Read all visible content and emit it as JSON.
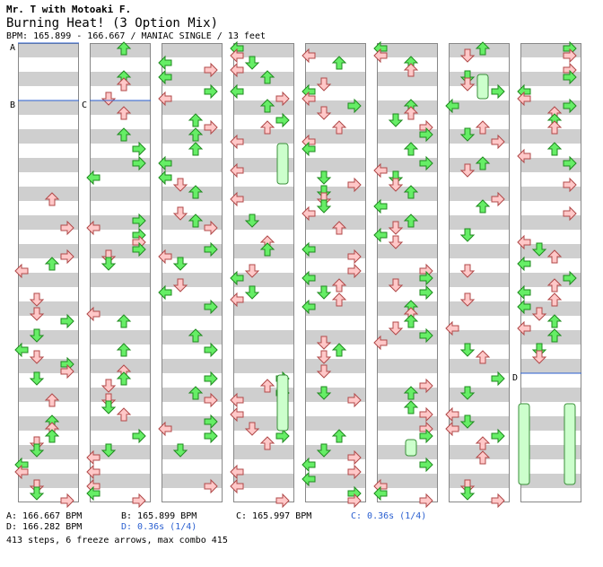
{
  "song": {
    "artist": "Mr. T with Motoaki F.",
    "title": "Burning Heat! (3 Option Mix)",
    "meta": "BPM: 165.899 - 166.667 / MANIAC SINGLE / 13 feet"
  },
  "markers": [
    "A",
    "B",
    "C",
    "D"
  ],
  "legend": {
    "a": "A: 166.667 BPM",
    "b": "B: 165.899 BPM",
    "c": "C: 165.997 BPM",
    "c_stop": "C: 0.36s (1/4)",
    "d": "D: 166.282 BPM",
    "d_stop": "D: 0.36s (1/4)"
  },
  "summary": "413 steps, 6 freeze arrows, max combo 415",
  "colors": {
    "stripe": "#cfcfcf",
    "arrow_red": "#ffc8c8",
    "arrow_red_border": "#b04848",
    "arrow_green": "#66ee66",
    "arrow_green_border": "#1f8a1f",
    "freeze_fill": "#ccffcc",
    "bpm_line": "#2a5fd0",
    "stop_text": "#2a5fd0"
  },
  "icons": [
    "arrow-left-icon",
    "arrow-down-icon",
    "arrow-up-icon",
    "arrow-right-icon"
  ]
}
